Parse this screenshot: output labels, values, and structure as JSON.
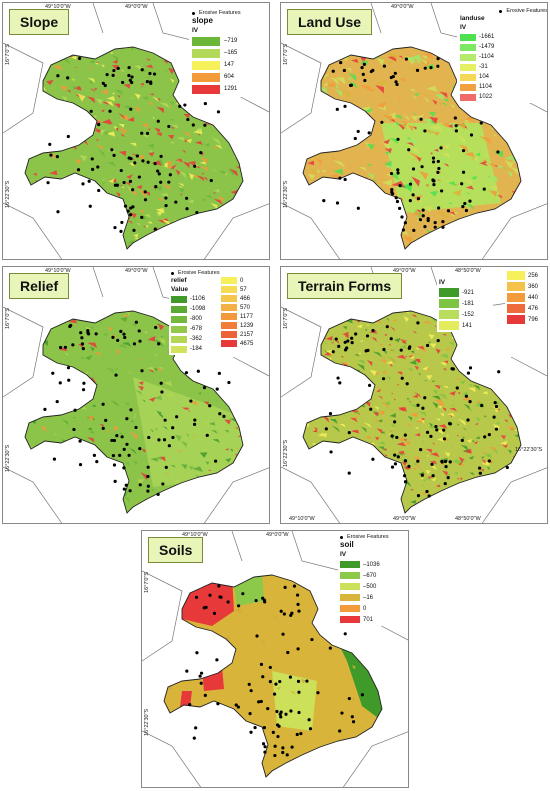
{
  "colors": {
    "green_dark": "#3f9a2a",
    "green": "#7cc442",
    "yellow_green": "#cfe05a",
    "yellow": "#f6f05a",
    "orange": "#f39a3a",
    "red": "#e8393a",
    "ochre": "#d9b43a",
    "bright_green": "#4fe04f",
    "light_green": "#9ee86a",
    "title_bg": "#e8f5b8",
    "point": "#000000"
  },
  "erosive_label": "Erosive Features",
  "panels": {
    "slope": {
      "title": "Slope",
      "coord_top": "49°10'0\"W",
      "coord_top2": "49°0'0\"W",
      "coord_left": "16°7'0\"S",
      "coord_left2": "16°22'30\"S",
      "legend_title": "slope",
      "legend_sub": "IV",
      "legend": [
        "–719",
        "–165",
        "147",
        "604",
        "1291"
      ]
    },
    "landuse": {
      "title": "Land Use",
      "coord_top": "49°0'0\"W",
      "coord_left": "16°7'0\"S",
      "coord_left2": "16°22'30\"S",
      "legend_title": "landuse",
      "legend_sub": "IV",
      "legend": [
        "-1661",
        "-1479",
        "-1104",
        "-31",
        "104",
        "1104",
        "1022"
      ]
    },
    "relief": {
      "title": "Relief",
      "coord_top": "49°10'0\"W",
      "coord_top2": "49°0'0\"W",
      "coord_left": "16°7'0\"S",
      "coord_left2": "16°22'30\"S",
      "legend_title": "relief",
      "legend_sub": "Value",
      "legend_left": [
        "-1106",
        "-1098",
        "-800",
        "-678",
        "-362",
        "-184"
      ],
      "legend_right": [
        "0",
        "57",
        "466",
        "570",
        "1177",
        "1239",
        "2157",
        "4675"
      ]
    },
    "terrain": {
      "title": "Terrain Forms",
      "coord_top": "49°0'0\"W",
      "coord_top2": "48°50'0\"W",
      "coord_bottom": "49°10'0\"W",
      "coord_bottom2": "49°0'0\"W",
      "coord_bottom3": "48°50'0\"W",
      "coord_left": "16°7'0\"S",
      "coord_left2": "16°22'30\"S",
      "coord_right": "16°22'30\"S",
      "legend_sub": "IV",
      "legend_left": [
        "-921",
        "-181",
        "-152",
        "141"
      ],
      "legend_right": [
        "256",
        "360",
        "440",
        "476",
        "796"
      ]
    },
    "soils": {
      "title": "Soils",
      "coord_top": "49°10'0\"W",
      "coord_top2": "49°0'0\"W",
      "coord_left": "16°7'0\"S",
      "coord_left2": "16°22'30\"S",
      "legend_title": "soil",
      "legend_sub": "IV",
      "legend": [
        "–1036",
        "–670",
        "–500",
        "–16",
        "0",
        "701"
      ]
    }
  }
}
